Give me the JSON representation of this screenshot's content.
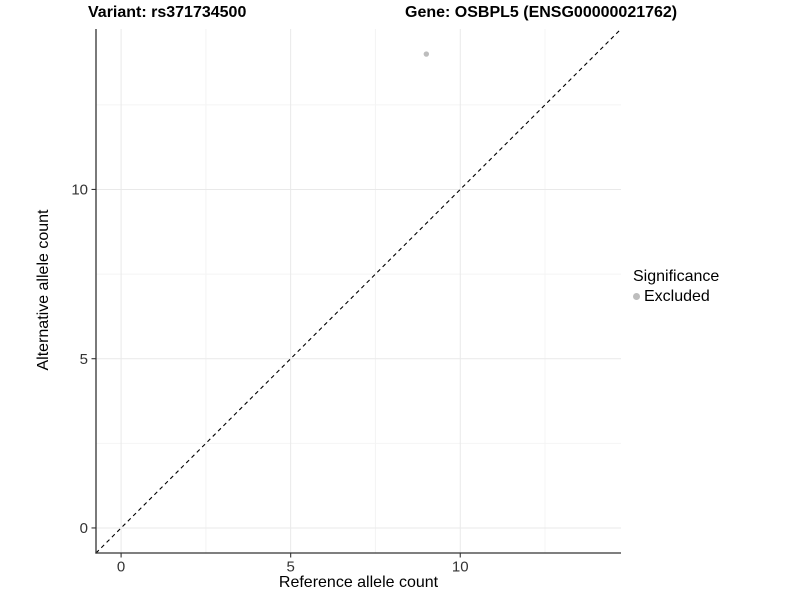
{
  "titles": {
    "variant": "Variant: rs371734500",
    "gene": "Gene: OSBPL5 (ENSG00000021762)"
  },
  "axes": {
    "x_label": "Reference allele count",
    "y_label": "Alternative allele count",
    "x_tick_labels": [
      "0",
      "5",
      "10"
    ],
    "y_tick_labels": [
      "0",
      "5",
      "10"
    ]
  },
  "legend": {
    "title": "Significance",
    "items": [
      {
        "label": "Excluded",
        "color": "#bdbdbd"
      }
    ]
  },
  "colors": {
    "point": "#bdbdbd",
    "grid_major": "#e9e9e9",
    "grid_minor": "#f4f4f4",
    "axis_line": "#333333",
    "tick_text": "#333333",
    "reference_line": "#000000"
  },
  "chart_data": {
    "type": "scatter",
    "title": "Variant: rs371734500 | Gene: OSBPL5 (ENSG00000021762)",
    "xlabel": "Reference allele count",
    "ylabel": "Alternative allele count",
    "xlim": [
      -0.74,
      14.74
    ],
    "ylim": [
      -0.74,
      14.74
    ],
    "x_ticks": [
      0,
      5,
      10
    ],
    "y_ticks": [
      0,
      5,
      10
    ],
    "x_minor_gridlines": [
      2.5,
      7.5,
      12.5
    ],
    "y_minor_gridlines": [
      2.5,
      7.5,
      12.5
    ],
    "grid": true,
    "legend_position": "right",
    "series": [
      {
        "name": "Excluded",
        "color": "#bdbdbd",
        "points": [
          {
            "x": 9,
            "y": 14
          }
        ]
      }
    ],
    "reference_line": {
      "style": "dashed",
      "from": [
        -0.74,
        -0.74
      ],
      "to": [
        14.74,
        14.74
      ],
      "color": "#000000",
      "meaning": "identity y=x"
    }
  }
}
